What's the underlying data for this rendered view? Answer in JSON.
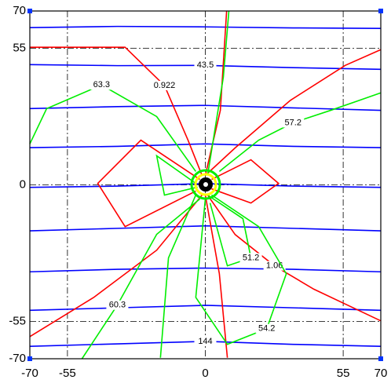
{
  "chart_data": {
    "type": "contour",
    "xlim": [
      -70,
      70
    ],
    "ylim": [
      -70,
      70
    ],
    "xticks": [
      -70,
      -55,
      0,
      55,
      70
    ],
    "yticks": [
      -70,
      -55,
      0,
      55,
      70
    ],
    "grid": true,
    "contours": [
      {
        "color": "#0000ff",
        "x": [
          -70,
          -35,
          0,
          35,
          70
        ],
        "y": [
          63.3,
          63.8,
          63.6,
          63.2,
          63.0
        ]
      },
      {
        "color": "#0000ff",
        "level": 43.5,
        "x": [
          -70,
          -35,
          0,
          35,
          70
        ],
        "y": [
          48.4,
          48.0,
          48.1,
          47.2,
          46.5
        ]
      },
      {
        "color": "#0000ff",
        "x": [
          -70,
          -35,
          0,
          35,
          70
        ],
        "y": [
          30.7,
          31.5,
          32.0,
          31.0,
          30.0
        ]
      },
      {
        "color": "#0000ff",
        "x": [
          -70,
          -35,
          0,
          35,
          70
        ],
        "y": [
          15.0,
          15.5,
          16.5,
          15.5,
          15.0
        ]
      },
      {
        "color": "#0000ff",
        "x": [
          -70,
          -35,
          0,
          35,
          70
        ],
        "y": [
          -1.0,
          -0.5,
          0.5,
          -0.5,
          -1.0
        ]
      },
      {
        "color": "#0000ff",
        "x": [
          -70,
          -35,
          0,
          35,
          70
        ],
        "y": [
          -18.5,
          -17.5,
          -16.5,
          -17.5,
          -18.5
        ]
      },
      {
        "color": "#0000ff",
        "x": [
          -70,
          -35,
          0,
          35,
          70
        ],
        "y": [
          -35.0,
          -34.0,
          -33.5,
          -34.0,
          -35.0
        ]
      },
      {
        "color": "#0000ff",
        "x": [
          -70,
          -35,
          0,
          35,
          70
        ],
        "y": [
          -50.5,
          -49.5,
          -48.5,
          -49.5,
          -50.5
        ]
      },
      {
        "color": "#0000ff",
        "level": 144,
        "x": [
          -70,
          -35,
          0,
          35,
          70
        ],
        "y": [
          -65.0,
          -64.0,
          -63.0,
          -64.2,
          -65.0
        ]
      },
      {
        "color": "#ff0000",
        "level": 0.922,
        "x": [
          -1.3,
          -6.9,
          -16.3,
          -32,
          -70
        ],
        "y": [
          3.8,
          18,
          40,
          55.4,
          55.4
        ]
      },
      {
        "color": "#ff0000",
        "x": [
          0,
          11.9,
          33.9,
          55.8,
          69.9
        ],
        "y": [
          3.8,
          14.9,
          34,
          48.1,
          54.4
        ]
      },
      {
        "color": "#ff0000",
        "level": 1.06,
        "x": [
          0.9,
          11.9,
          27.6,
          43.3,
          69.9
        ],
        "y": [
          -4.1,
          -20,
          -32.6,
          -42,
          -54.7
        ]
      },
      {
        "color": "#ff0000",
        "x": [
          -1.3,
          -19.4,
          -44.5,
          -70
        ],
        "y": [
          -4.1,
          -26.3,
          -45.3,
          -61.1
        ]
      },
      {
        "color": "#ff0000",
        "x": [
          0,
          6,
          8.5
        ],
        "y": [
          3.8,
          30,
          70
        ]
      },
      {
        "color": "#ff0000",
        "x": [
          0,
          5.6,
          8.8
        ],
        "y": [
          -4.1,
          -35.8,
          -69.6
        ]
      },
      {
        "color": "#ff0000",
        "x": [
          -2.2,
          -25.7,
          -42.9,
          -32,
          -3.8
        ],
        "y": [
          2.2,
          18,
          0.6,
          -16.8,
          -2.5
        ]
      },
      {
        "color": "#ff0000",
        "x": [
          2.5,
          18.2,
          29.2,
          18.2,
          2.5
        ],
        "y": [
          2.2,
          10.1,
          0.6,
          -7.3,
          -1.6
        ]
      },
      {
        "color": "#00ee00",
        "level": 63.3,
        "x": [
          -3.8,
          -19.4,
          -41.4,
          -63.3,
          -70
        ],
        "y": [
          5.4,
          27.5,
          40.2,
          30.7,
          16.5
        ]
      },
      {
        "color": "#00ee00",
        "level": 57.2,
        "x": [
          5.6,
          21.3,
          35,
          50,
          69.9
        ],
        "y": [
          5.4,
          18,
          25,
          30,
          37
        ]
      },
      {
        "color": "#00ee00",
        "level": 54.2,
        "x": [
          2.5,
          21.3,
          32.3,
          24.5,
          8.8,
          -3.8,
          0
        ],
        "y": [
          -4.1,
          -16.8,
          -35.8,
          -57.9,
          -64.2,
          -45.3,
          -5.7
        ]
      },
      {
        "color": "#00ee00",
        "level": 51.2,
        "x": [
          0.9,
          15,
          18.2,
          8.8,
          1.9
        ],
        "y": [
          -4.1,
          -13.6,
          -29.4,
          -32.6,
          -7.3
        ]
      },
      {
        "color": "#00ee00",
        "level": 60.3,
        "x": [
          -2.2,
          -19.4,
          -35.1,
          -49.2
        ],
        "y": [
          -5.7,
          -19.9,
          -48.4,
          -70
        ]
      },
      {
        "color": "#00ee00",
        "x": [
          0.9,
          7.2,
          9.4
        ],
        "y": [
          3.8,
          43.4,
          70
        ]
      },
      {
        "color": "#00ee00",
        "x": [
          -3.8,
          -19.4,
          -16.3,
          -3.1
        ],
        "y": [
          0.6,
          11.7,
          -4.1,
          -0.9
        ]
      },
      {
        "color": "#00ee00",
        "x": [
          -3.8,
          -14.7,
          -17.9
        ],
        "y": [
          -4.1,
          -29.4,
          -69.6
        ]
      }
    ]
  }
}
